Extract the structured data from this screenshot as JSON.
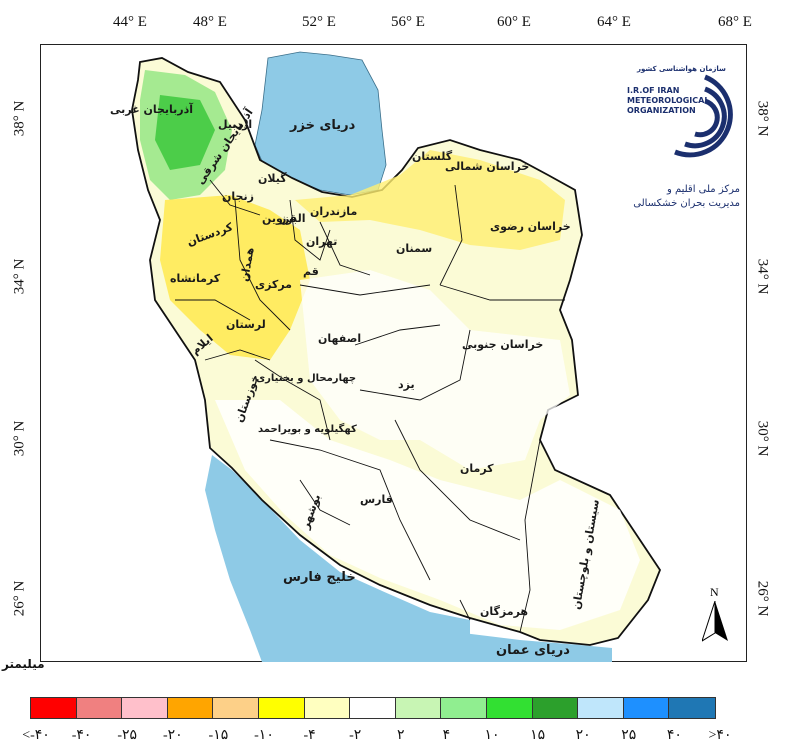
{
  "map": {
    "longitude_ticks": [
      "44° E",
      "48° E",
      "52° E",
      "56° E",
      "60° E",
      "64° E",
      "68° E"
    ],
    "latitude_ticks": [
      "38° N",
      "34° N",
      "30° N",
      "26° N"
    ],
    "north_arrow": "N",
    "unit_label": "میلیمتر",
    "seas": {
      "caspian": "دریای خزر",
      "persian_gulf": "خلیج فارس",
      "oman": "دریای عمان"
    },
    "provinces": {
      "west_azarbaijan": "آذربایجان غربی",
      "east_azarbaijan": "آذربایجان شرقی",
      "ardabil": "اردبیل",
      "zanjan": "زنجان",
      "gilan": "گیلان",
      "golestan": "گلستان",
      "north_khorasan": "خراسان شمالی",
      "razavi_khorasan": "خراسان رضوی",
      "south_khorasan": "خراسان جنوبی",
      "mazandaran": "مازندران",
      "qazvin": "قزوین",
      "alborz": "البرز",
      "tehran": "تهران",
      "qom": "قم",
      "semnan": "سمنان",
      "kurdistan": "کردستان",
      "hamedan": "همدان",
      "kermanshah": "کرمانشاه",
      "markazi": "مرکزی",
      "ilam": "ایلام",
      "lorestan": "لرستان",
      "isfahan": "اصفهان",
      "yazd": "یزد",
      "khuzestan": "خوزستان",
      "chaharmahal": "چهارمحال و بختیاری",
      "kohgiluyeh": "کهگیلویه و بویراحمد",
      "fars": "فارس",
      "bushehr": "بوشهر",
      "kerman": "کرمان",
      "hormozgan": "هرمزگان",
      "sistan": "سیستان و بلوچستان"
    }
  },
  "logo": {
    "org_fa_top": "سازمان هواشناسی کشور",
    "line1": "I.R.OF IRAN",
    "line2": "METEOROLOGICAL",
    "line3": "ORGANIZATION",
    "subtitle_line1": "مرکز ملی اقلیم و",
    "subtitle_line2": "مدیریت بحران خشکسالی"
  },
  "legend": {
    "colors": [
      "#ff0000",
      "#f08080",
      "#ffc0cb",
      "#ffa500",
      "#fdd088",
      "#ffff00",
      "#ffffc0",
      "#ffffff",
      "#c8f5b4",
      "#90ee90",
      "#32e032",
      "#2ca02c",
      "#bfe6fb",
      "#1e90ff",
      "#1f77b4"
    ],
    "labels": [
      "<-۴۰",
      "-۴۰",
      "-۲۵",
      "-۲۰",
      "-۱۵",
      "-۱۰",
      "-۴",
      "-۲",
      "۲",
      "۴",
      "۱۰",
      "۱۵",
      "۲۰",
      "۲۵",
      "۴۰",
      ">۴۰"
    ]
  }
}
